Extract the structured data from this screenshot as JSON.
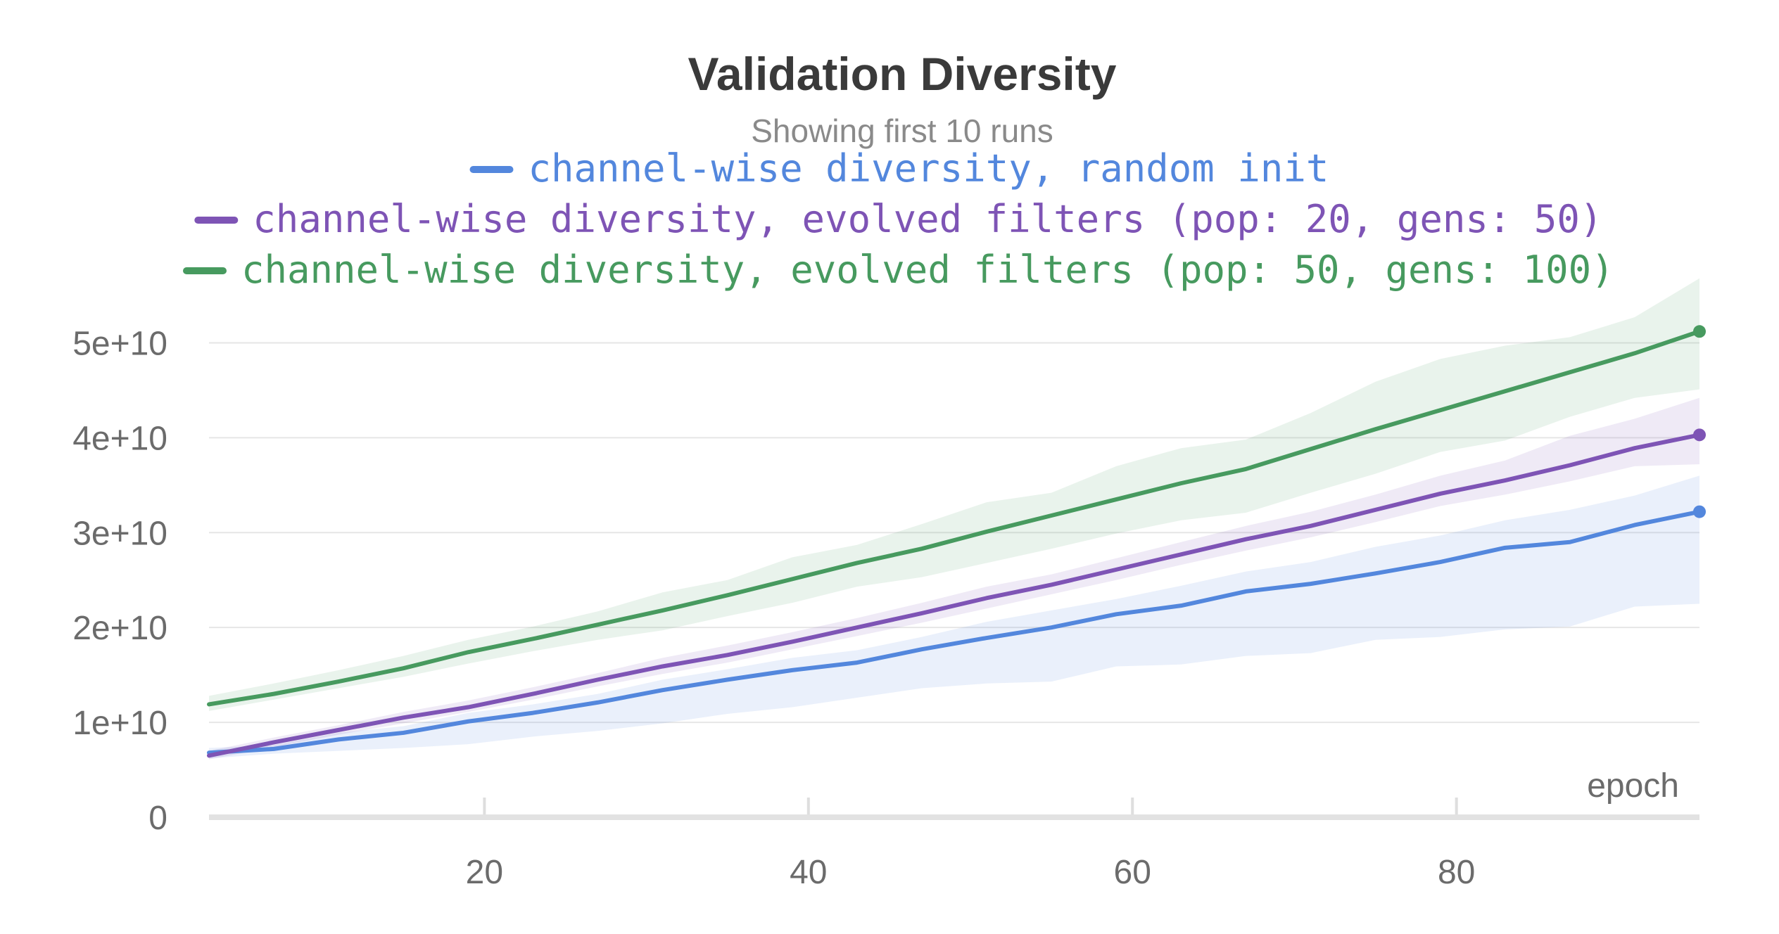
{
  "chart_data": {
    "type": "line",
    "title": "Validation Diversity",
    "subtitle": "Showing first 10 runs",
    "xlabel": "epoch",
    "ylabel": "",
    "xlim": [
      3,
      95
    ],
    "ylim": [
      0,
      55000000000
    ],
    "x_ticks": [
      20,
      40,
      60,
      80
    ],
    "y_ticks": [
      0,
      10000000000,
      20000000000,
      30000000000,
      40000000000,
      50000000000
    ],
    "y_tick_labels": [
      "0",
      "1e+10",
      "2e+10",
      "3e+10",
      "4e+10",
      "5e+10"
    ],
    "grid": true,
    "legend_placement": "top",
    "series": [
      {
        "name": "channel-wise diversity, random init",
        "color": "#5387dd",
        "x": [
          3,
          7,
          11,
          15,
          19,
          23,
          27,
          31,
          35,
          39,
          43,
          47,
          51,
          55,
          59,
          63,
          67,
          71,
          75,
          79,
          83,
          87,
          91,
          95
        ],
        "values": [
          6800000000,
          7200000000,
          8200000000,
          8900000000,
          10100000000,
          11000000000,
          12100000000,
          13400000000,
          14500000000,
          15500000000,
          16300000000,
          17700000000,
          18900000000,
          20000000000,
          21400000000,
          22300000000,
          23800000000,
          24600000000,
          25700000000,
          26900000000,
          28400000000,
          29000000000,
          30800000000,
          32200000000
        ],
        "lower": [
          6200000000,
          6700000000,
          7000000000,
          7300000000,
          7700000000,
          8500000000,
          9100000000,
          9900000000,
          10900000000,
          11600000000,
          12600000000,
          13600000000,
          14100000000,
          14300000000,
          15900000000,
          16100000000,
          17000000000,
          17300000000,
          18700000000,
          19000000000,
          19800000000,
          20100000000,
          22200000000,
          22500000000
        ],
        "upper": [
          7300000000,
          7600000000,
          8900000000,
          9600000000,
          11000000000,
          11900000000,
          13000000000,
          14500000000,
          15600000000,
          16800000000,
          17600000000,
          19000000000,
          20600000000,
          21800000000,
          23000000000,
          24400000000,
          25900000000,
          26900000000,
          28500000000,
          29700000000,
          31300000000,
          32400000000,
          33900000000,
          36000000000
        ]
      },
      {
        "name": "channel-wise diversity, evolved filters (pop: 20, gens: 50)",
        "color": "#7e54b5",
        "x": [
          3,
          7,
          11,
          15,
          19,
          23,
          27,
          31,
          35,
          39,
          43,
          47,
          51,
          55,
          59,
          63,
          67,
          71,
          75,
          79,
          83,
          87,
          91,
          95
        ],
        "values": [
          6500000000,
          7900000000,
          9200000000,
          10500000000,
          11600000000,
          13000000000,
          14500000000,
          15900000000,
          17100000000,
          18500000000,
          20000000000,
          21500000000,
          23100000000,
          24500000000,
          26100000000,
          27700000000,
          29300000000,
          30700000000,
          32400000000,
          34100000000,
          35500000000,
          37100000000,
          38900000000,
          40300000000
        ],
        "lower": [
          6100000000,
          7400000000,
          8700000000,
          9900000000,
          11100000000,
          12400000000,
          13800000000,
          15100000000,
          16300000000,
          17700000000,
          19100000000,
          20500000000,
          22000000000,
          23500000000,
          25000000000,
          26600000000,
          28100000000,
          29500000000,
          31100000000,
          32800000000,
          34000000000,
          35400000000,
          37000000000,
          37200000000
        ],
        "upper": [
          7000000000,
          8400000000,
          9700000000,
          11100000000,
          12300000000,
          13700000000,
          15200000000,
          16800000000,
          18100000000,
          19500000000,
          21000000000,
          22600000000,
          24300000000,
          25600000000,
          27300000000,
          29000000000,
          30700000000,
          32200000000,
          34000000000,
          36000000000,
          37600000000,
          40200000000,
          42000000000,
          44200000000
        ]
      },
      {
        "name": "channel-wise diversity, evolved filters (pop: 50, gens: 100)",
        "color": "#479a5f",
        "x": [
          3,
          7,
          11,
          15,
          19,
          23,
          27,
          31,
          35,
          39,
          43,
          47,
          51,
          55,
          59,
          63,
          67,
          71,
          75,
          79,
          83,
          87,
          91,
          95
        ],
        "values": [
          11900000000,
          13000000000,
          14300000000,
          15700000000,
          17400000000,
          18800000000,
          20300000000,
          21800000000,
          23400000000,
          25100000000,
          26800000000,
          28300000000,
          30100000000,
          31800000000,
          33500000000,
          35200000000,
          36700000000,
          38800000000,
          40900000000,
          42900000000,
          44900000000,
          46900000000,
          48900000000,
          51200000000
        ],
        "lower": [
          11200000000,
          12400000000,
          13600000000,
          14800000000,
          16200000000,
          17500000000,
          18700000000,
          19700000000,
          21200000000,
          22600000000,
          24300000000,
          25300000000,
          26800000000,
          28300000000,
          29900000000,
          31300000000,
          32100000000,
          34200000000,
          36200000000,
          38500000000,
          39700000000,
          42200000000,
          44200000000,
          45100000000
        ],
        "upper": [
          12800000000,
          14100000000,
          15500000000,
          17000000000,
          18700000000,
          20100000000,
          21700000000,
          23700000000,
          25000000000,
          27400000000,
          28700000000,
          30900000000,
          33200000000,
          34200000000,
          37000000000,
          38900000000,
          39800000000,
          42600000000,
          45900000000,
          48300000000,
          49700000000,
          50600000000,
          52700000000,
          56800000000
        ]
      }
    ]
  }
}
